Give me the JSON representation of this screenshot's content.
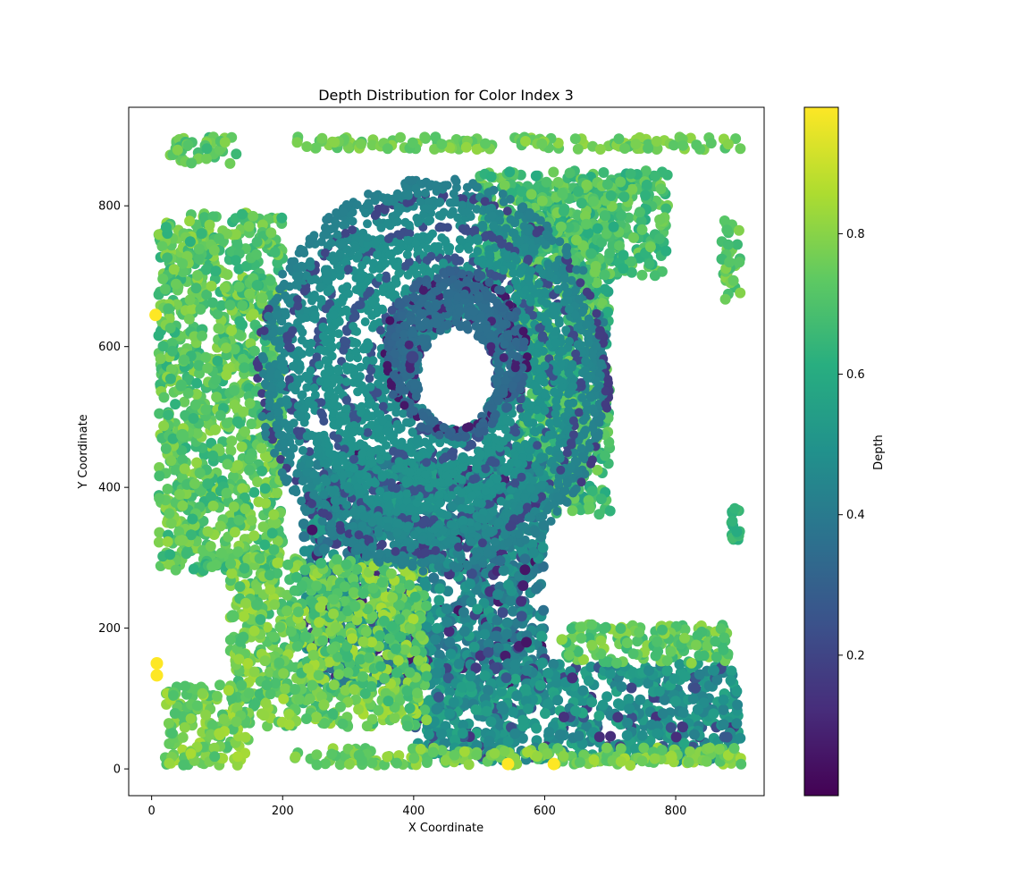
{
  "chart_data": {
    "type": "scatter",
    "title": "Depth Distribution for Color Index 3",
    "xlabel": "X Coordinate",
    "ylabel": "Y Coordinate",
    "xlim": [
      -35,
      935
    ],
    "ylim": [
      -38,
      940
    ],
    "xticks": [
      0,
      200,
      400,
      600,
      800
    ],
    "yticks": [
      0,
      200,
      400,
      600,
      800
    ],
    "grid": false,
    "colormap": "viridis",
    "colorbar": {
      "label": "Depth",
      "range": [
        0.0,
        0.98
      ],
      "ticks": [
        0.2,
        0.4,
        0.6,
        0.8
      ]
    },
    "hole": {
      "cx": 465,
      "cy": 555,
      "rx": 58,
      "ry": 72
    },
    "regions": [
      {
        "name": "vortex-disk",
        "cx": 430,
        "cy": 560,
        "rx": 270,
        "ry": 280,
        "depth": [
          0.3,
          0.5
        ]
      },
      {
        "name": "vortex-core",
        "cx": 465,
        "cy": 590,
        "rx": 110,
        "ry": 120,
        "depth": [
          0.22,
          0.36
        ]
      },
      {
        "name": "west-band",
        "x": [
          10,
          200
        ],
        "y": [
          280,
          790
        ],
        "depth": [
          0.62,
          0.82
        ]
      },
      {
        "name": "east-arc",
        "x": [
          560,
          700
        ],
        "y": [
          360,
          830
        ],
        "depth": [
          0.55,
          0.78
        ]
      },
      {
        "name": "lower-tail",
        "x": [
          230,
          600
        ],
        "y": [
          120,
          450
        ],
        "depth": [
          0.35,
          0.55
        ]
      },
      {
        "name": "south-stream",
        "x": [
          400,
          900
        ],
        "y": [
          10,
          150
        ],
        "depth": [
          0.42,
          0.58
        ]
      },
      {
        "name": "south-stream-top",
        "x": [
          620,
          880
        ],
        "y": [
          150,
          205
        ],
        "depth": [
          0.65,
          0.82
        ]
      },
      {
        "name": "southwest-arm",
        "x": [
          120,
          420
        ],
        "y": [
          60,
          300
        ],
        "depth": [
          0.65,
          0.85
        ]
      },
      {
        "name": "bottom-edge",
        "x": [
          210,
          900
        ],
        "y": [
          5,
          30
        ],
        "depth": [
          0.7,
          0.85
        ]
      },
      {
        "name": "lower-left-blob",
        "x": [
          20,
          150
        ],
        "y": [
          5,
          120
        ],
        "depth": [
          0.68,
          0.85
        ]
      },
      {
        "name": "top-strip",
        "x": [
          220,
          900
        ],
        "y": [
          880,
          898
        ],
        "depth": [
          0.7,
          0.82
        ]
      },
      {
        "name": "top-left-cluster",
        "x": [
          25,
          130
        ],
        "y": [
          860,
          898
        ],
        "depth": [
          0.65,
          0.8
        ]
      },
      {
        "name": "northeast-arc",
        "x": [
          500,
          790
        ],
        "y": [
          700,
          850
        ],
        "depth": [
          0.6,
          0.78
        ]
      },
      {
        "name": "east-strip",
        "x": [
          870,
          900
        ],
        "y": [
          665,
          780
        ],
        "depth": [
          0.65,
          0.8
        ]
      },
      {
        "name": "east-dots",
        "x": [
          885,
          900
        ],
        "y": [
          325,
          375
        ],
        "depth": [
          0.6,
          0.68
        ]
      }
    ],
    "highlight_points": [
      {
        "x": 398,
        "y": 585,
        "depth": 0.2
      },
      {
        "x": 8,
        "y": 150,
        "depth": 0.98
      },
      {
        "x": 8,
        "y": 133,
        "depth": 0.98
      },
      {
        "x": 6,
        "y": 645,
        "depth": 0.98
      },
      {
        "x": 544,
        "y": 7,
        "depth": 0.98
      },
      {
        "x": 614,
        "y": 7,
        "depth": 0.98
      },
      {
        "x": 124,
        "y": 217,
        "depth": 0.72
      },
      {
        "x": 47,
        "y": 474,
        "depth": 0.72
      }
    ]
  }
}
